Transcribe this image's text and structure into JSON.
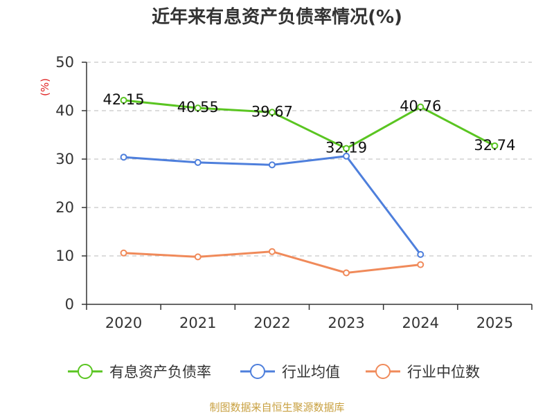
{
  "chart_data": {
    "type": "line",
    "title": "近年来有息资产负债率情况(%)",
    "ylabel": "(%)",
    "xlabel": "",
    "categories": [
      "2020",
      "2021",
      "2022",
      "2023",
      "2024",
      "2025"
    ],
    "ylim": [
      0,
      50
    ],
    "yticks": [
      0,
      10,
      20,
      30,
      40,
      50
    ],
    "grid": true,
    "legend_position": "bottom",
    "series": [
      {
        "name": "有息资产负债率",
        "color": "#5ac521",
        "values": [
          42.15,
          40.55,
          39.67,
          32.19,
          40.76,
          32.74
        ],
        "labels": [
          "42.15",
          "40.55",
          "39.67",
          "32.19",
          "40.76",
          "32.74"
        ]
      },
      {
        "name": "行业均值",
        "color": "#4e7fdc",
        "values": [
          30.4,
          29.3,
          28.8,
          30.6,
          10.3,
          null
        ]
      },
      {
        "name": "行业中位数",
        "color": "#f08a5a",
        "values": [
          10.6,
          9.8,
          10.9,
          6.5,
          8.2,
          null
        ]
      }
    ]
  },
  "footer": {
    "source": "制图数据来自恒生聚源数据库"
  }
}
